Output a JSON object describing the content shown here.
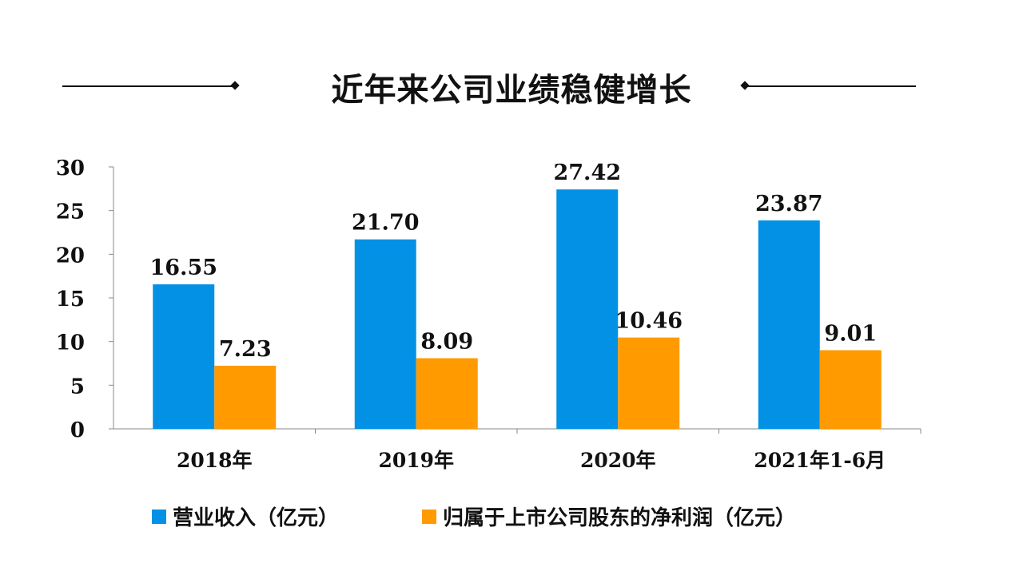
{
  "colors": {
    "revenue": "#0391e6",
    "profit": "#ff9b00",
    "text": "#111111",
    "axis": "#888888"
  },
  "chart_data": {
    "type": "bar",
    "title": "近年来公司业绩稳健增长",
    "categories": [
      "2018年",
      "2019年",
      "2020年",
      "2021年1-6月"
    ],
    "series": [
      {
        "name": "营业收入（亿元）",
        "values": [
          16.55,
          21.7,
          27.42,
          23.87
        ]
      },
      {
        "name": "归属于上市公司股东的净利润（亿元）",
        "values": [
          7.23,
          8.09,
          10.46,
          9.01
        ]
      }
    ],
    "value_labels": [
      [
        "16.55",
        "21.70",
        "27.42",
        "23.87"
      ],
      [
        "7.23",
        "8.09",
        "10.46",
        "9.01"
      ]
    ],
    "ylim": [
      0,
      30
    ],
    "yticks": [
      "0",
      "5",
      "10",
      "15",
      "20",
      "25",
      "30"
    ],
    "grid": false,
    "legend": "bottom"
  }
}
